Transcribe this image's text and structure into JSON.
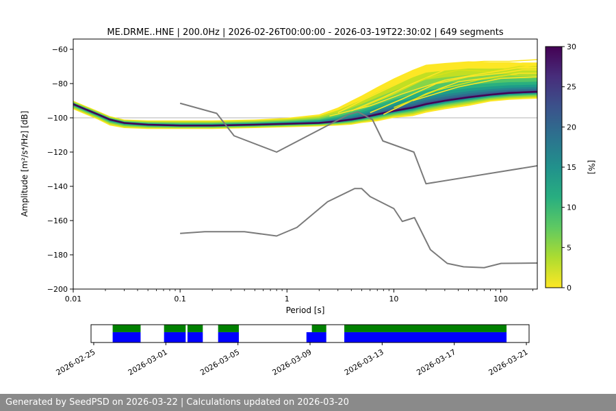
{
  "chart_data": {
    "type": "heatmap",
    "title": "ME.DRME..HNE | 200.0Hz | 2026-02-26T00:00:00 - 2026-03-19T22:30:02 | 649 segments",
    "xlabel": "Period [s]",
    "ylabel": "Amplitude [m²/s⁴/Hz] [dB]",
    "xscale": "log",
    "xlim": [
      0.01,
      220
    ],
    "ylim": [
      -200,
      -54
    ],
    "xticks": [
      0.01,
      0.1,
      1,
      10,
      100
    ],
    "xtick_labels": [
      "0.01",
      "0.1",
      "1",
      "10",
      "100"
    ],
    "yticks": [
      -60,
      -80,
      -100,
      -120,
      -140,
      -160,
      -180,
      -200
    ],
    "ytick_labels": [
      "−60",
      "−80",
      "−100",
      "−120",
      "−140",
      "−160",
      "−180",
      "−200"
    ],
    "grid": false,
    "colorbar": {
      "label": "[%]",
      "min": 0,
      "max": 30,
      "ticks": [
        0,
        5,
        10,
        15,
        20,
        25,
        30
      ],
      "colormap": "viridis_r",
      "stops_top_to_bottom": [
        "#440154",
        "#472d7b",
        "#3b528b",
        "#2c728e",
        "#21918c",
        "#28ae80",
        "#5ec962",
        "#addc30",
        "#fde725"
      ]
    },
    "reference_line_db": -100,
    "noise_models": {
      "color": "#7a7a7a",
      "nhnm": [
        [
          0.1,
          -91.5
        ],
        [
          0.22,
          -97.4
        ],
        [
          0.32,
          -110.5
        ],
        [
          0.8,
          -120.0
        ],
        [
          3.8,
          -98.0
        ],
        [
          4.6,
          -96.5
        ],
        [
          6.3,
          -101.0
        ],
        [
          7.9,
          -113.5
        ],
        [
          15.4,
          -120.0
        ],
        [
          20.0,
          -138.5
        ],
        [
          220,
          -128.0
        ]
      ],
      "nlnm": [
        [
          0.1,
          -167.5
        ],
        [
          0.17,
          -166.5
        ],
        [
          0.4,
          -166.5
        ],
        [
          0.8,
          -169.0
        ],
        [
          1.24,
          -164.0
        ],
        [
          2.4,
          -149.0
        ],
        [
          4.3,
          -141.3
        ],
        [
          5.0,
          -141.3
        ],
        [
          6.0,
          -146.0
        ],
        [
          10.0,
          -153.0
        ],
        [
          12.0,
          -160.5
        ],
        [
          15.6,
          -158.3
        ],
        [
          22.0,
          -177.0
        ],
        [
          31.6,
          -185.0
        ],
        [
          45.0,
          -187.0
        ],
        [
          70.0,
          -187.5
        ],
        [
          101,
          -185.0
        ],
        [
          220,
          -184.8
        ]
      ]
    },
    "ppsd_band": {
      "periods": [
        0.01,
        0.013,
        0.017,
        0.022,
        0.03,
        0.05,
        0.1,
        0.2,
        0.5,
        1.0,
        2.0,
        3.0,
        4.0,
        5.0,
        7.0,
        10,
        15,
        20,
        30,
        50,
        80,
        120,
        180,
        220
      ],
      "mode_db": [
        -92,
        -95,
        -98,
        -101,
        -103,
        -104,
        -104.5,
        -104.5,
        -104,
        -103.5,
        -103,
        -102,
        -101,
        -100,
        -98,
        -96,
        -94,
        -92,
        -90,
        -88,
        -86.5,
        -85.5,
        -85,
        -84.8
      ],
      "spread_up_db": [
        2,
        2,
        2,
        2,
        2,
        2.5,
        3,
        3,
        3,
        3.5,
        5,
        8,
        11,
        13,
        16,
        19,
        22,
        23,
        22,
        21,
        19,
        18,
        17,
        17
      ],
      "spread_down_db": [
        3,
        3,
        3,
        3.5,
        3,
        2.5,
        2,
        2,
        2,
        2,
        2,
        2.5,
        3,
        3,
        4,
        4,
        5,
        5,
        5,
        5,
        4,
        4,
        4,
        4
      ]
    },
    "density_levels": [
      {
        "f": 1.0,
        "color": "#fde725"
      },
      {
        "f": 0.8,
        "color": "#c2df23"
      },
      {
        "f": 0.62,
        "color": "#86d549"
      },
      {
        "f": 0.47,
        "color": "#52c569"
      },
      {
        "f": 0.35,
        "color": "#2ab07f"
      },
      {
        "f": 0.25,
        "color": "#1e9c89"
      },
      {
        "f": 0.17,
        "color": "#25858e"
      },
      {
        "f": 0.11,
        "color": "#2d708e"
      },
      {
        "f": 0.06,
        "color": "#38588c"
      },
      {
        "f": 0.02,
        "color": "#433e85"
      }
    ],
    "mode_line_color": "#440154",
    "outlier_lines": [
      {
        "color": "#fde725",
        "points": [
          [
            3,
            -97
          ],
          [
            5,
            -90
          ],
          [
            8,
            -84
          ],
          [
            15,
            -76
          ],
          [
            25,
            -70
          ],
          [
            40,
            -68
          ],
          [
            70,
            -67
          ],
          [
            120,
            -67
          ],
          [
            220,
            -66
          ]
        ]
      },
      {
        "color": "#fde725",
        "points": [
          [
            4,
            -96
          ],
          [
            8,
            -88
          ],
          [
            15,
            -80
          ],
          [
            30,
            -72
          ],
          [
            60,
            -69
          ],
          [
            100,
            -70
          ],
          [
            160,
            -68
          ],
          [
            220,
            -68
          ]
        ]
      },
      {
        "color": "#d8e219",
        "points": [
          [
            5,
            -94
          ],
          [
            10,
            -86
          ],
          [
            20,
            -77
          ],
          [
            40,
            -72
          ],
          [
            80,
            -73
          ],
          [
            150,
            -70
          ],
          [
            220,
            -70
          ]
        ]
      },
      {
        "color": "#fde725",
        "points": [
          [
            6,
            -97
          ],
          [
            12,
            -89
          ],
          [
            25,
            -80
          ],
          [
            50,
            -76
          ],
          [
            100,
            -74
          ],
          [
            160,
            -72
          ],
          [
            220,
            -72
          ]
        ]
      },
      {
        "color": "#fde725",
        "points": [
          [
            8,
            -98
          ],
          [
            20,
            -86
          ],
          [
            40,
            -79
          ],
          [
            90,
            -76
          ],
          [
            150,
            -74
          ],
          [
            220,
            -74
          ]
        ]
      },
      {
        "color": "#d8e219",
        "points": [
          [
            10,
            -94
          ],
          [
            25,
            -84
          ],
          [
            60,
            -78
          ],
          [
            120,
            -75
          ],
          [
            220,
            -75
          ]
        ]
      },
      {
        "color": "#fde725",
        "points": [
          [
            15,
            -90
          ],
          [
            40,
            -82
          ],
          [
            100,
            -77
          ],
          [
            220,
            -76
          ]
        ]
      },
      {
        "color": "#fde725",
        "points": [
          [
            2.5,
            -99
          ],
          [
            6,
            -93
          ],
          [
            12,
            -86
          ],
          [
            30,
            -78
          ],
          [
            70,
            -74
          ],
          [
            140,
            -71
          ],
          [
            220,
            -69
          ]
        ]
      }
    ],
    "timeline": {
      "ticks": [
        "2026-02-25",
        "2026-03-01",
        "2026-03-05",
        "2026-03-09",
        "2026-03-13",
        "2026-03-17",
        "2026-03-21"
      ],
      "tick_days": [
        0,
        4,
        8,
        12,
        16,
        20,
        24
      ],
      "axis_min_day": -0.15,
      "axis_max_day": 24.15,
      "blue_color": "#0000ff",
      "green_color": "#008000",
      "blue_segments": [
        [
          1.05,
          2.6
        ],
        [
          3.9,
          5.1
        ],
        [
          5.2,
          6.05
        ],
        [
          6.9,
          8.05
        ],
        [
          11.8,
          12.9
        ],
        [
          13.9,
          22.9
        ]
      ],
      "green_segments": [
        [
          1.05,
          2.6
        ],
        [
          3.9,
          5.1
        ],
        [
          5.2,
          6.05
        ],
        [
          6.9,
          8.05
        ],
        [
          12.1,
          12.9
        ],
        [
          13.9,
          22.9
        ]
      ]
    }
  },
  "footer": {
    "text": "Generated by SeedPSD on 2026-03-22 | Calculations updated on 2026-03-20"
  }
}
